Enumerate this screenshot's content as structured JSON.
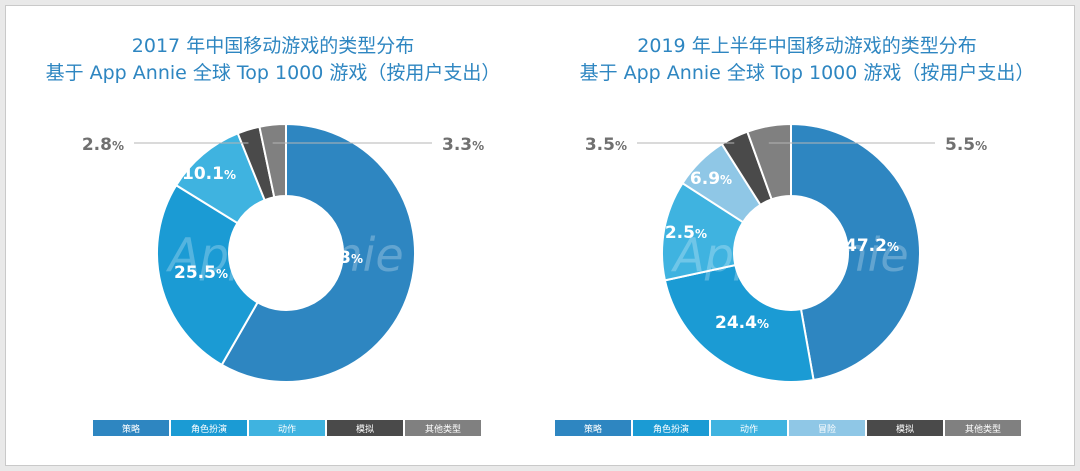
{
  "chart_data": [
    {
      "type": "pie",
      "title": "2017 年中国移动游戏的类型分布",
      "subtitle": "基于 App Annie 全球 Top 1000 游戏（按用户支出）",
      "watermark": "App Annie",
      "categories": [
        "策略",
        "角色扮演",
        "动作",
        "模拟",
        "其他类型"
      ],
      "values": [
        58.3,
        25.5,
        10.1,
        2.8,
        3.3
      ],
      "value_labels": [
        "58.3",
        "25.5",
        "10.1",
        "2.8",
        "3.3"
      ],
      "unit": "%",
      "colors": [
        "#2e86c1",
        "#1b9bd4",
        "#3fb3e0",
        "#4a4a4a",
        "#808080"
      ]
    },
    {
      "type": "pie",
      "title": "2019 年上半年中国移动游戏的类型分布",
      "subtitle": "基于 App Annie 全球 Top 1000 游戏（按用户支出）",
      "watermark": "App Annie",
      "categories": [
        "策略",
        "角色扮演",
        "动作",
        "冒险",
        "模拟",
        "其他类型"
      ],
      "values": [
        47.2,
        24.4,
        12.5,
        6.9,
        3.5,
        5.5
      ],
      "value_labels": [
        "47.2",
        "24.4",
        "12.5",
        "6.9",
        "3.5",
        "5.5"
      ],
      "unit": "%",
      "colors": [
        "#2e86c1",
        "#1b9bd4",
        "#3fb3e0",
        "#8fc7e6",
        "#4a4a4a",
        "#808080"
      ]
    }
  ]
}
